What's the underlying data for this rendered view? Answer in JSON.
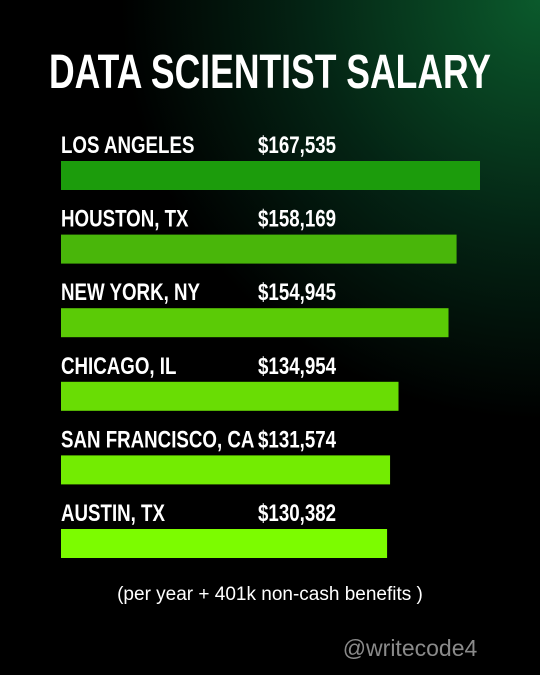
{
  "chart_data": {
    "type": "bar",
    "orientation": "horizontal",
    "title": "DATA SCIENTIST SALARY",
    "categories": [
      "LOS ANGELES",
      "HOUSTON, TX",
      "NEW YORK, NY",
      "CHICAGO, IL",
      "SAN FRANCISCO, CA",
      "AUSTIN, TX"
    ],
    "values": [
      167535,
      158169,
      154945,
      134954,
      131574,
      130382
    ],
    "value_labels": [
      "$167,535",
      "$158,169",
      "$154,945",
      "$134,954",
      "$131,574",
      "$130,382"
    ],
    "colors": [
      "#1c9c0c",
      "#49b60a",
      "#5bcb06",
      "#69dd04",
      "#73ec02",
      "#7cfc00"
    ],
    "note": "(per year + 401k non-cash benefits )",
    "credit": "@writecode4"
  }
}
